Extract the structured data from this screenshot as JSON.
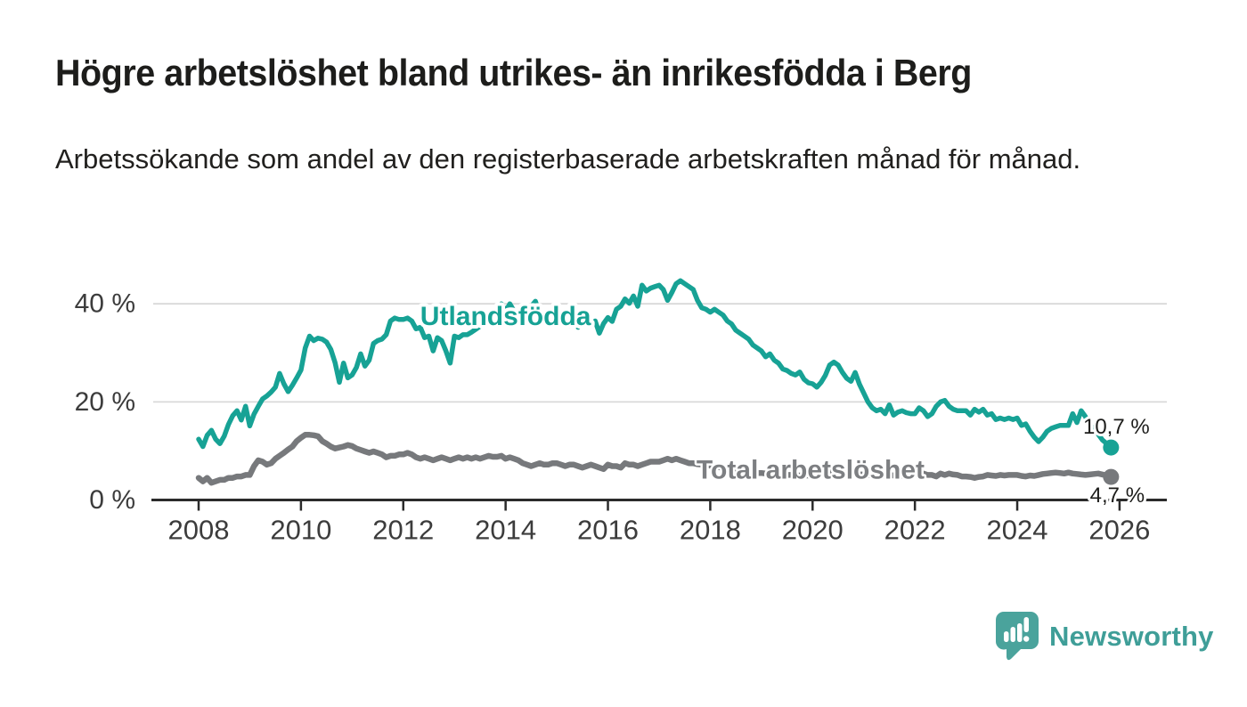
{
  "header": {
    "title": "Högre arbetslöshet bland utrikes- än inrikesfödda i Berg",
    "subtitle": "Arbetssökande som andel av den registerbaserade arbetskraften månad för månad."
  },
  "footer": {
    "brand": "Newsworthy",
    "logo_icon": "bar-chart-speech-bubble",
    "logo_color": "#4aa39c",
    "logo_text_color": "#3f9e98"
  },
  "chart_data": {
    "type": "line",
    "x_unit": "year, monthly resolution",
    "x_start": 2008.0,
    "x_step": 0.0833333,
    "xlim": [
      2007.1,
      2026.9
    ],
    "ylim": [
      0,
      47
    ],
    "grid": "horizontal",
    "x_ticks": [
      2008,
      2010,
      2012,
      2014,
      2016,
      2018,
      2020,
      2022,
      2024,
      2026
    ],
    "y_ticks": [
      {
        "value": 0,
        "label": "0 %"
      },
      {
        "value": 20,
        "label": "20 %"
      },
      {
        "value": 40,
        "label": "40 %"
      }
    ],
    "colors": {
      "axis": "#2b2b2b",
      "gridline": "#d9d9d9",
      "tick_label": "#3c3c3c",
      "value_label": "#1d1d1b"
    },
    "series": [
      {
        "name": "Total arbetslöshet",
        "color": "#77797c",
        "label_color": "#7d7f82",
        "label_x": 2019.96,
        "label_y": 6.1,
        "end_label": "4,7 %",
        "end_value": 4.7,
        "values": [
          4.5,
          3.8,
          4.5,
          3.5,
          3.8,
          4.1,
          4.1,
          4.5,
          4.5,
          4.8,
          4.8,
          5.1,
          5.1,
          6.9,
          8.1,
          7.8,
          7.2,
          7.5,
          8.4,
          9.0,
          9.6,
          10.3,
          10.9,
          12.0,
          12.7,
          13.3,
          13.3,
          13.2,
          13.0,
          12.0,
          11.5,
          10.9,
          10.5,
          10.7,
          10.9,
          11.2,
          11.0,
          10.5,
          10.2,
          9.9,
          9.6,
          9.9,
          9.6,
          9.3,
          8.7,
          9.0,
          9.0,
          9.3,
          9.3,
          9.6,
          9.3,
          8.7,
          8.4,
          8.7,
          8.4,
          8.1,
          8.4,
          8.7,
          8.4,
          8.1,
          8.4,
          8.7,
          8.4,
          8.7,
          8.4,
          8.7,
          8.4,
          8.7,
          9.0,
          8.8,
          8.8,
          9.0,
          8.4,
          8.7,
          8.4,
          8.1,
          7.5,
          7.2,
          6.9,
          7.2,
          7.5,
          7.2,
          7.2,
          7.5,
          7.5,
          7.2,
          6.9,
          7.2,
          7.2,
          6.9,
          6.6,
          6.9,
          7.2,
          6.9,
          6.6,
          6.3,
          7.2,
          6.9,
          6.9,
          6.6,
          7.5,
          7.2,
          7.2,
          6.9,
          7.2,
          7.5,
          7.8,
          7.8,
          7.8,
          8.1,
          8.4,
          8.1,
          8.4,
          8.1,
          7.8,
          7.5,
          7.5,
          7.3,
          7.2,
          7.2,
          7.0,
          6.9,
          6.7,
          6.5,
          6.3,
          6.2,
          6.0,
          5.9,
          5.8,
          5.7,
          5.6,
          5.5,
          5.5,
          5.4,
          5.4,
          5.3,
          5.2,
          5.2,
          5.1,
          5.1,
          5.0,
          5.0,
          5.0,
          5.0,
          5.0,
          5.1,
          5.4,
          5.8,
          6.0,
          5.9,
          5.7,
          5.5,
          5.4,
          5.3,
          5.3,
          5.2,
          5.2,
          5.1,
          5.0,
          4.9,
          5.0,
          4.9,
          5.1,
          5.0,
          4.9,
          5.0,
          5.1,
          5.2,
          5.4,
          5.2,
          5.4,
          5.1,
          5.1,
          4.8,
          5.4,
          5.1,
          5.4,
          5.2,
          5.1,
          4.8,
          4.8,
          4.7,
          4.5,
          4.7,
          4.8,
          5.1,
          5.0,
          4.9,
          5.1,
          5.0,
          5.1,
          5.1,
          5.1,
          4.9,
          4.8,
          5.0,
          4.9,
          5.1,
          5.3,
          5.4,
          5.5,
          5.6,
          5.5,
          5.4,
          5.6,
          5.4,
          5.3,
          5.2,
          5.1,
          5.2,
          5.3,
          5.4,
          5.2,
          5.0,
          4.7
        ]
      },
      {
        "name": "Utlandsfödda",
        "color": "#17a295",
        "label_color": "#17a295",
        "label_x": 2014.0,
        "label_y": 37.4,
        "end_label": "10,7 %",
        "end_value": 10.7,
        "values": [
          12.4,
          10.9,
          13.2,
          14.2,
          12.4,
          11.5,
          13.0,
          15.4,
          17.2,
          18.2,
          16.3,
          19.1,
          15.1,
          17.5,
          19.1,
          20.6,
          21.2,
          22.0,
          23.0,
          25.8,
          23.7,
          22.1,
          23.4,
          24.9,
          26.5,
          31.0,
          33.4,
          32.5,
          33.0,
          32.8,
          32.2,
          30.7,
          28.0,
          24.0,
          27.9,
          24.9,
          25.5,
          27.0,
          29.8,
          27.3,
          28.5,
          31.9,
          32.5,
          32.8,
          33.7,
          36.5,
          37.1,
          36.8,
          36.8,
          37.1,
          36.5,
          34.9,
          35.2,
          33.1,
          33.4,
          30.4,
          33.1,
          32.5,
          30.4,
          27.9,
          33.4,
          33.1,
          33.7,
          33.7,
          34.2,
          34.8,
          35.4,
          36.0,
          36.5,
          37.0,
          38.5,
          40.0,
          38.5,
          40.0,
          38.5,
          37.0,
          36.5,
          37.5,
          39.5,
          40.5,
          38.0,
          36.5,
          37.5,
          36.0,
          36.5,
          37.0,
          36.2,
          35.5,
          36.0,
          35.2,
          36.2,
          37.7,
          35.5,
          36.5,
          34.0,
          36.0,
          37.2,
          36.4,
          38.9,
          39.5,
          41.0,
          40.1,
          41.6,
          39.5,
          43.8,
          42.6,
          43.2,
          43.5,
          43.8,
          42.9,
          40.7,
          42.3,
          44.1,
          44.7,
          44.1,
          43.5,
          42.9,
          40.7,
          39.2,
          38.9,
          38.3,
          38.9,
          38.3,
          37.7,
          36.5,
          35.9,
          34.6,
          34.0,
          33.4,
          32.8,
          31.6,
          31.0,
          30.4,
          29.2,
          29.8,
          28.5,
          27.9,
          26.7,
          26.4,
          25.8,
          25.5,
          26.1,
          24.6,
          23.9,
          23.7,
          23.0,
          24.0,
          25.4,
          27.5,
          28.1,
          27.5,
          26.0,
          24.8,
          24.2,
          26.0,
          23.6,
          21.8,
          20.0,
          18.8,
          18.2,
          18.5,
          17.6,
          19.4,
          17.3,
          17.9,
          18.2,
          17.8,
          17.6,
          17.6,
          18.8,
          18.2,
          17.0,
          17.6,
          19.1,
          20.0,
          20.3,
          19.1,
          18.5,
          18.2,
          18.2,
          18.2,
          17.3,
          18.5,
          17.9,
          18.5,
          17.3,
          17.6,
          16.4,
          16.7,
          16.4,
          16.7,
          16.4,
          16.7,
          15.2,
          15.5,
          14.0,
          12.8,
          11.9,
          12.8,
          14.0,
          14.6,
          14.9,
          15.2,
          15.2,
          15.2,
          17.6,
          15.8,
          18.2,
          17.0,
          15.2,
          14.6,
          13.4,
          12.2,
          11.5,
          10.7
        ]
      }
    ]
  }
}
